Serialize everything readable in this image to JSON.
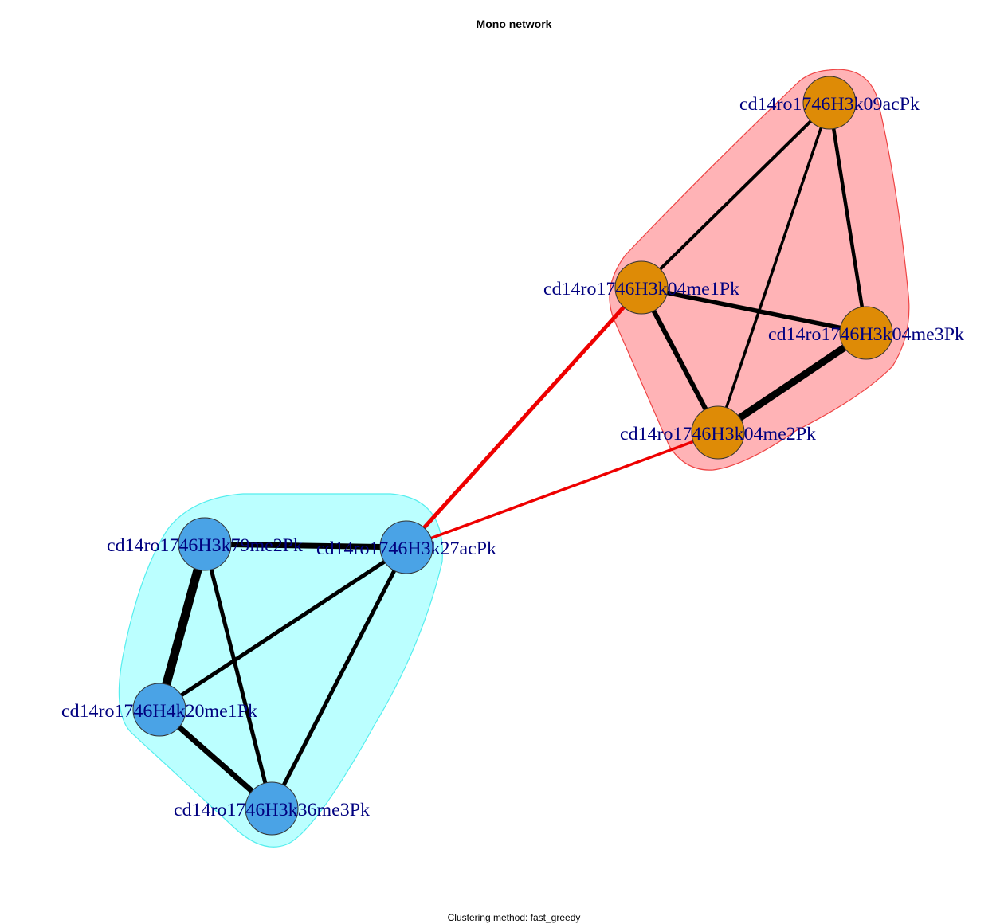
{
  "title": "Mono network",
  "subtitle": "Clustering method: fast_greedy",
  "colors": {
    "cluster_blue_fill": "#bbffff",
    "cluster_blue_stroke": "#55eeee",
    "cluster_red_fill": "#ffb3b6",
    "cluster_red_stroke": "#ee4444",
    "node_blue": "#4aa3e6",
    "node_orange": "#de8b06",
    "edge_intra": "#000000",
    "edge_inter": "#ee0000",
    "label": "#00007f"
  },
  "clusters": [
    {
      "id": "c1",
      "color": "cyan"
    },
    {
      "id": "c2",
      "color": "red"
    }
  ],
  "nodes": [
    {
      "id": "k09ac",
      "label": "cd14ro1746H3k09acPk",
      "cluster": "c2"
    },
    {
      "id": "k04me1",
      "label": "cd14ro1746H3k04me1Pk",
      "cluster": "c2"
    },
    {
      "id": "k04me3",
      "label": "cd14ro1746H3k04me3Pk",
      "cluster": "c2"
    },
    {
      "id": "k04me2",
      "label": "cd14ro1746H3k04me2Pk",
      "cluster": "c2"
    },
    {
      "id": "k79me2",
      "label": "cd14ro1746H3k79me2Pk",
      "cluster": "c1"
    },
    {
      "id": "k27ac",
      "label": "cd14ro1746H3k27acPk",
      "cluster": "c1"
    },
    {
      "id": "k20me1",
      "label": "cd14ro1746H4k20me1Pk",
      "cluster": "c1"
    },
    {
      "id": "k36me3",
      "label": "cd14ro1746H3k36me3Pk",
      "cluster": "c1"
    }
  ],
  "edges": [
    {
      "source": "k09ac",
      "target": "k04me1",
      "type": "intra"
    },
    {
      "source": "k09ac",
      "target": "k04me3",
      "type": "intra"
    },
    {
      "source": "k09ac",
      "target": "k04me2",
      "type": "intra"
    },
    {
      "source": "k04me1",
      "target": "k04me3",
      "type": "intra"
    },
    {
      "source": "k04me1",
      "target": "k04me2",
      "type": "intra"
    },
    {
      "source": "k04me3",
      "target": "k04me2",
      "type": "intra"
    },
    {
      "source": "k79me2",
      "target": "k27ac",
      "type": "intra"
    },
    {
      "source": "k79me2",
      "target": "k20me1",
      "type": "intra"
    },
    {
      "source": "k79me2",
      "target": "k36me3",
      "type": "intra"
    },
    {
      "source": "k27ac",
      "target": "k20me1",
      "type": "intra"
    },
    {
      "source": "k27ac",
      "target": "k36me3",
      "type": "intra"
    },
    {
      "source": "k20me1",
      "target": "k36me3",
      "type": "intra"
    },
    {
      "source": "k27ac",
      "target": "k04me1",
      "type": "inter"
    },
    {
      "source": "k27ac",
      "target": "k04me2",
      "type": "inter"
    }
  ]
}
